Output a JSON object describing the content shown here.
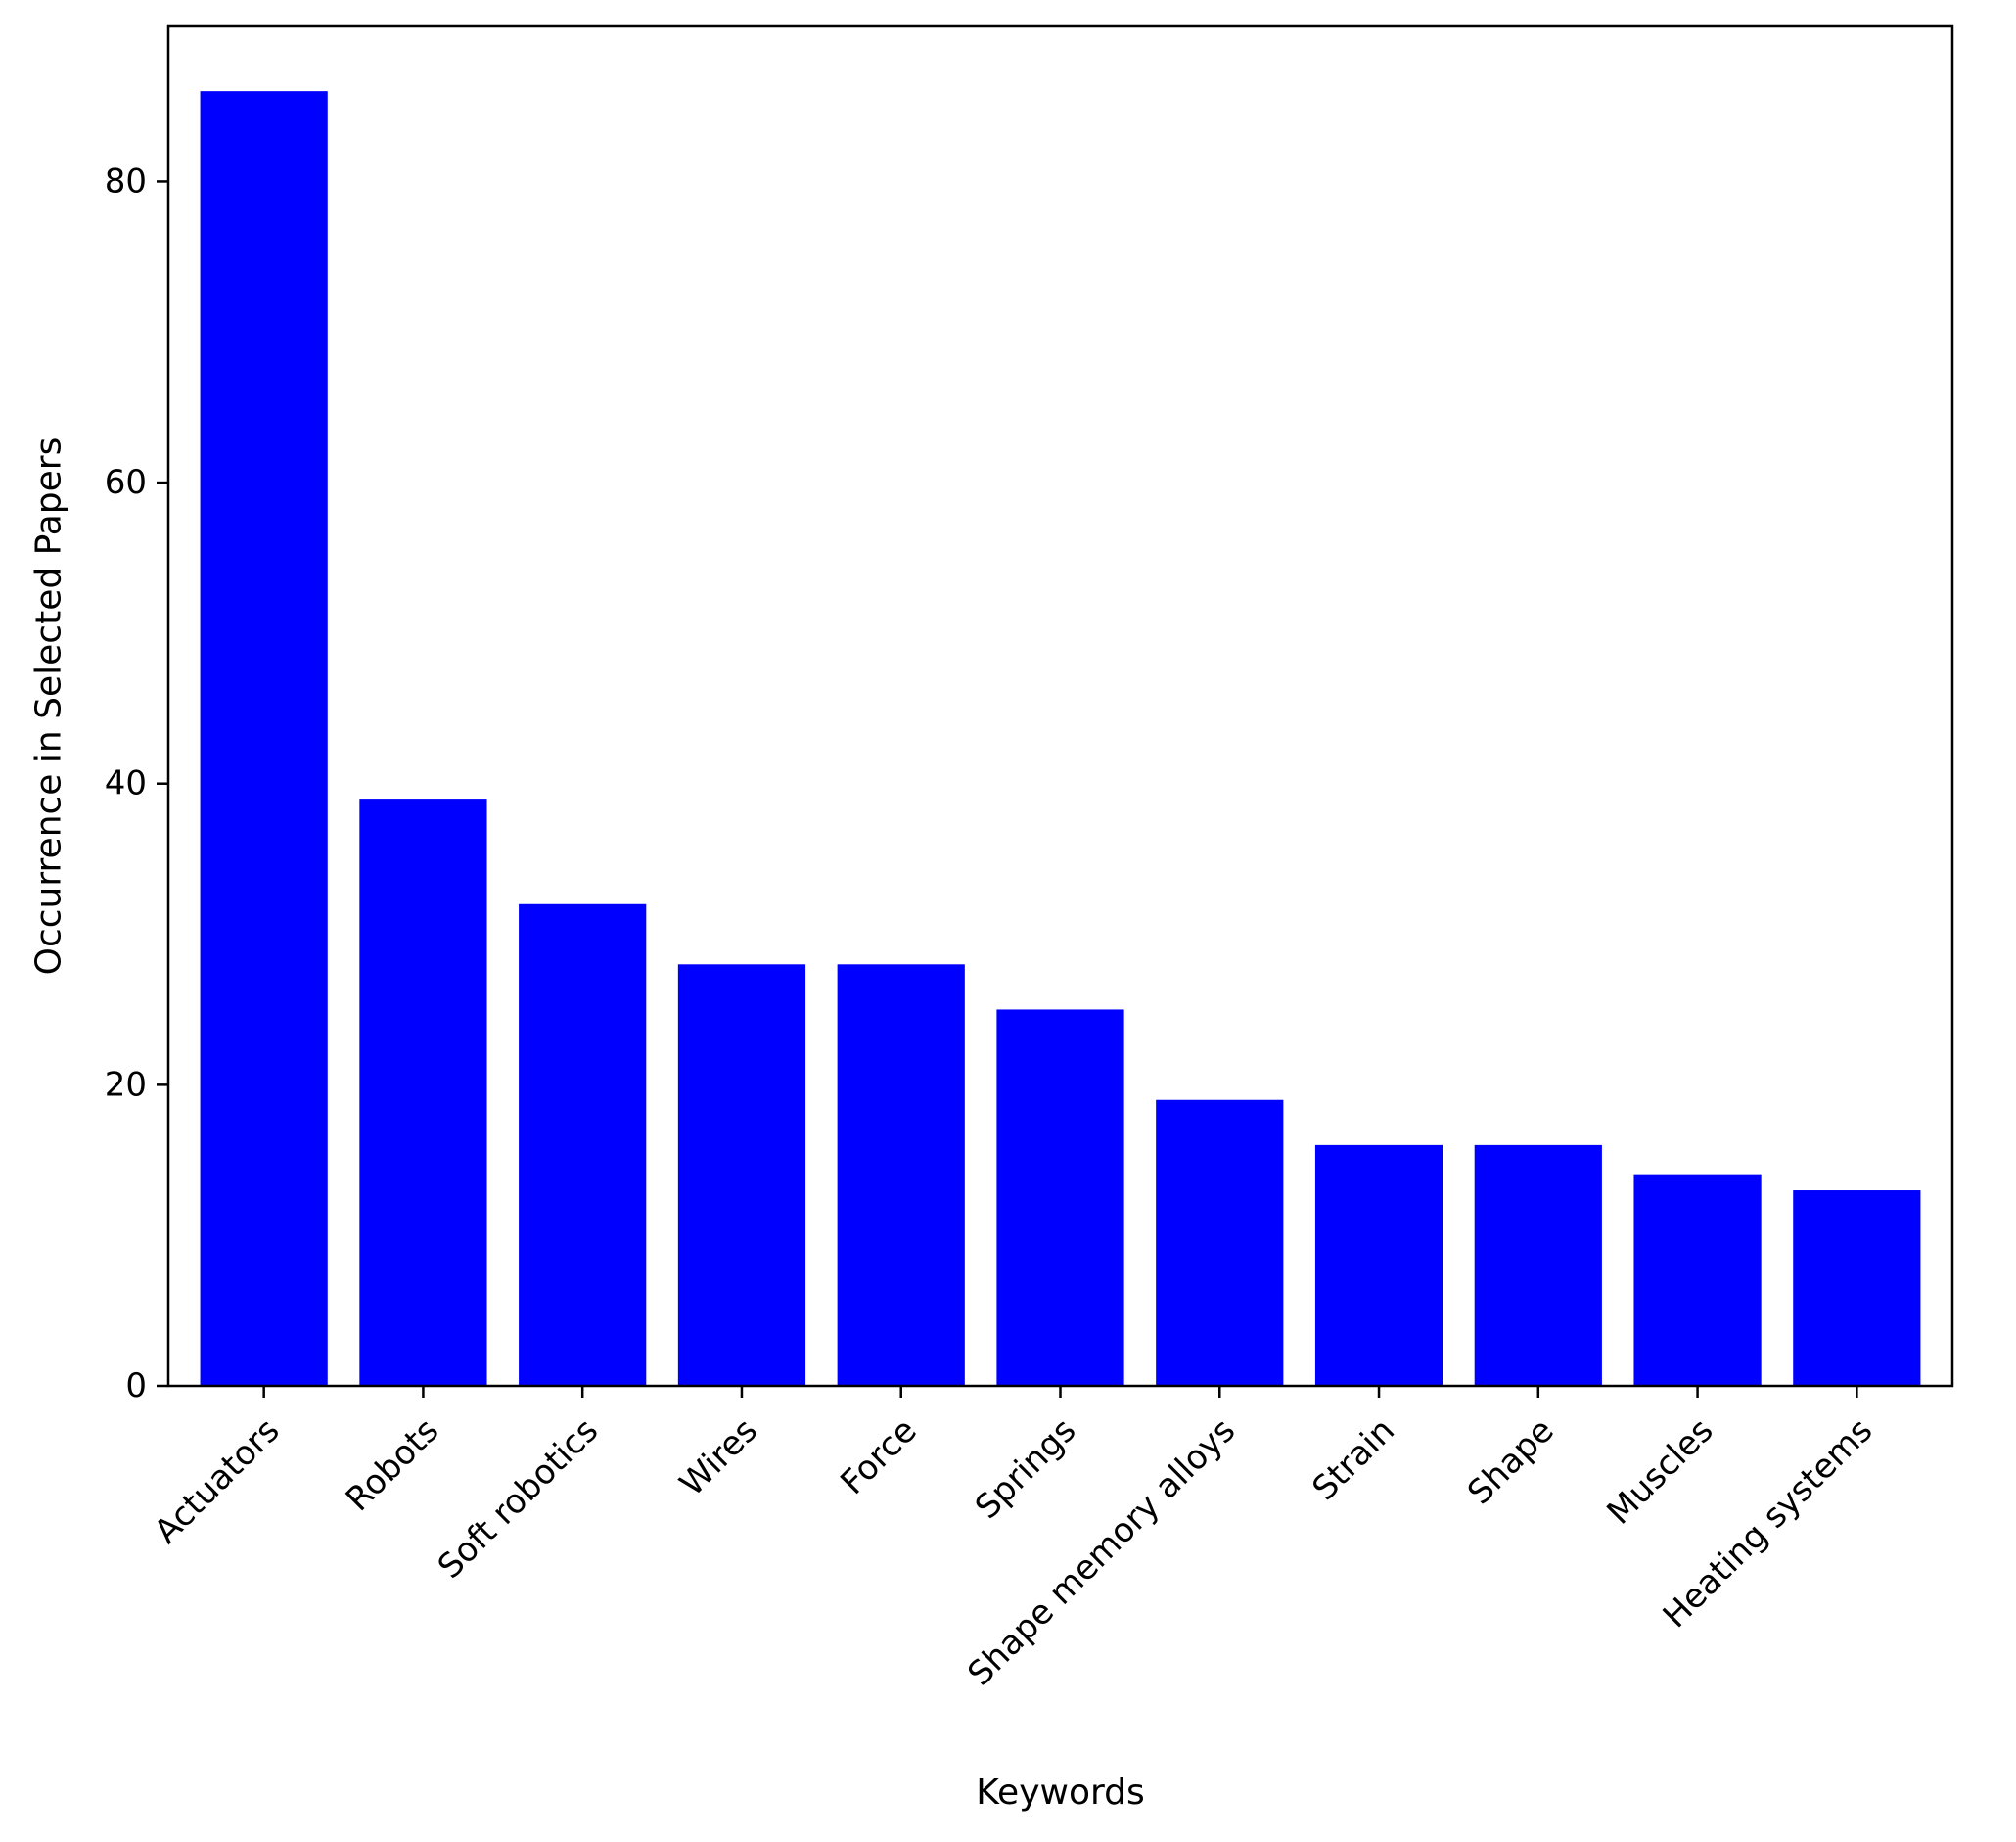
{
  "chart_data": {
    "type": "bar",
    "title": "",
    "xlabel": "Keywords",
    "ylabel": "Occurrence in Selected Papers",
    "categories": [
      "Actuators",
      "Robots",
      "Soft robotics",
      "Wires",
      "Force",
      "Springs",
      "Shape memory alloys",
      "Strain",
      "Shape",
      "Muscles",
      "Heating systems"
    ],
    "values": [
      86,
      39,
      32,
      28,
      28,
      25,
      19,
      16,
      16,
      14,
      13
    ],
    "ylim": [
      0,
      90.3
    ],
    "yticks": [
      0,
      20,
      40,
      60,
      80
    ],
    "grid": false,
    "legend": "none",
    "colors": {
      "bar": "#0000ff",
      "axes": "#000000",
      "background": "#ffffff"
    },
    "xtick_rotation_deg": 45
  }
}
